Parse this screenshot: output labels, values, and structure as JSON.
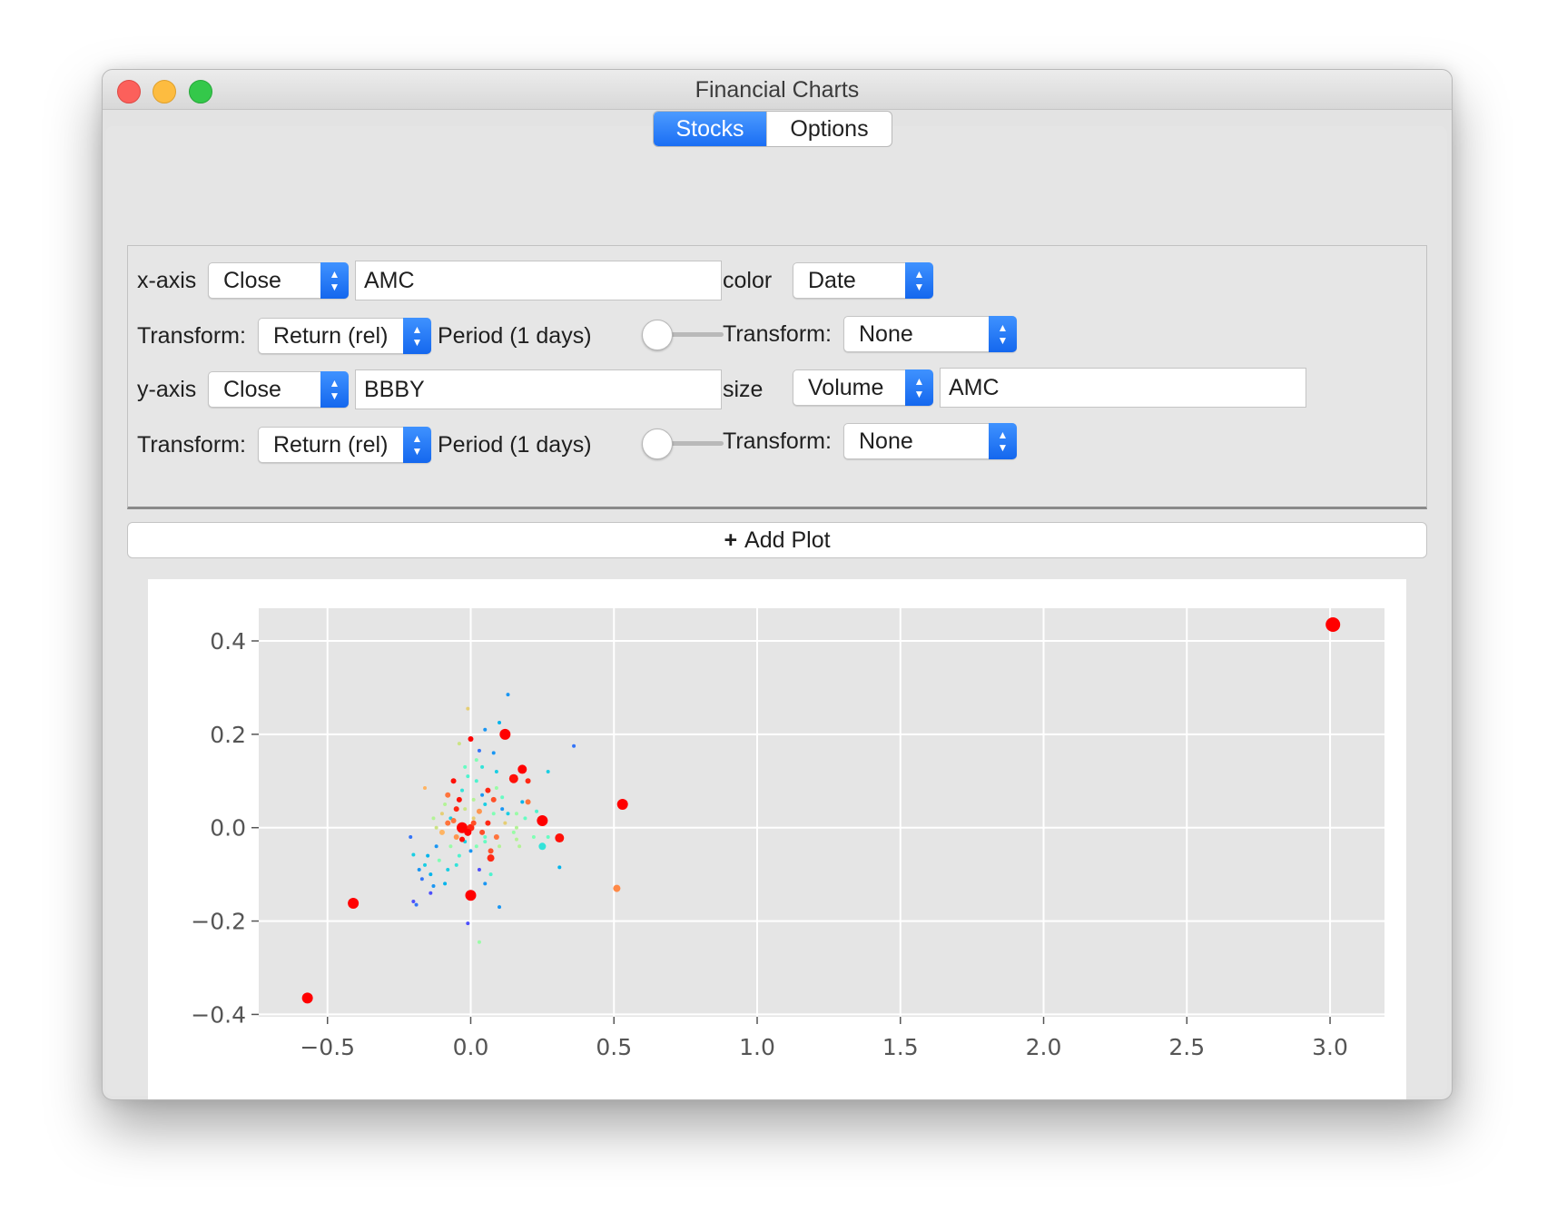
{
  "window": {
    "title": "Financial Charts"
  },
  "tabs": {
    "stocks": "Stocks",
    "options": "Options"
  },
  "controls": {
    "x_axis_label": "x-axis",
    "x_field": "Close",
    "x_symbol": "AMC",
    "x_transform_label": "Transform:",
    "x_transform": "Return (rel)",
    "x_period": "Period (1 days)",
    "color_label": "color",
    "color_field": "Date",
    "color_transform_label": "Transform:",
    "color_transform": "None",
    "y_axis_label": "y-axis",
    "y_field": "Close",
    "y_symbol": "BBBY",
    "y_transform_label": "Transform:",
    "y_transform": "Return (rel)",
    "y_period": "Period (1 days)",
    "size_label": "size",
    "size_field": "Volume",
    "size_symbol": "AMC",
    "size_transform_label": "Transform:",
    "size_transform": "None",
    "x_period_slider": 0,
    "y_period_slider": 0
  },
  "add_plot": {
    "label": "Add Plot"
  },
  "chart_data": {
    "type": "scatter",
    "xlim": [
      -0.74,
      3.19
    ],
    "ylim": [
      -0.405,
      0.47
    ],
    "xticks": [
      -0.5,
      0.0,
      0.5,
      1.0,
      1.5,
      2.0,
      2.5,
      3.0
    ],
    "yticks": [
      -0.4,
      -0.2,
      0.0,
      0.2,
      0.4
    ],
    "xtick_labels": [
      "−0.5",
      "0.0",
      "0.5",
      "1.0",
      "1.5",
      "2.0",
      "2.5",
      "3.0"
    ],
    "ytick_labels": [
      "−0.4",
      "−0.2",
      "0.0",
      "0.2",
      "0.4"
    ],
    "grid": true,
    "background": "#e5e5e5",
    "colormap": "rainbow",
    "points": [
      {
        "x": 3.01,
        "y": 0.435,
        "c": 1.0,
        "s": 8
      },
      {
        "x": -0.57,
        "y": -0.365,
        "c": 1.0,
        "s": 6
      },
      {
        "x": -0.41,
        "y": -0.162,
        "c": 1.0,
        "s": 6
      },
      {
        "x": 0.53,
        "y": 0.05,
        "c": 1.0,
        "s": 6
      },
      {
        "x": 0.12,
        "y": 0.2,
        "c": 1.0,
        "s": 6
      },
      {
        "x": 0.0,
        "y": -0.145,
        "c": 1.0,
        "s": 6
      },
      {
        "x": 0.25,
        "y": 0.015,
        "c": 1.0,
        "s": 6
      },
      {
        "x": 0.31,
        "y": -0.022,
        "c": 0.98,
        "s": 5
      },
      {
        "x": 0.18,
        "y": 0.125,
        "c": 1.0,
        "s": 5
      },
      {
        "x": 0.15,
        "y": 0.105,
        "c": 0.98,
        "s": 5
      },
      {
        "x": -0.03,
        "y": 0.0,
        "c": 1.0,
        "s": 6
      },
      {
        "x": 0.07,
        "y": -0.065,
        "c": 0.95,
        "s": 4
      },
      {
        "x": 0.51,
        "y": -0.13,
        "c": 0.82,
        "s": 4
      },
      {
        "x": 0.25,
        "y": -0.04,
        "c": 0.35,
        "s": 4
      },
      {
        "x": 0.13,
        "y": 0.285,
        "c": 0.2,
        "s": 2
      },
      {
        "x": 0.36,
        "y": 0.175,
        "c": 0.15,
        "s": 2
      },
      {
        "x": -0.01,
        "y": 0.255,
        "c": 0.7,
        "s": 2
      },
      {
        "x": 0.1,
        "y": 0.225,
        "c": 0.25,
        "s": 2
      },
      {
        "x": 0.05,
        "y": 0.21,
        "c": 0.2,
        "s": 2
      },
      {
        "x": 0.27,
        "y": 0.12,
        "c": 0.3,
        "s": 2
      },
      {
        "x": -0.16,
        "y": 0.085,
        "c": 0.75,
        "s": 2
      },
      {
        "x": 0.31,
        "y": -0.085,
        "c": 0.25,
        "s": 2
      },
      {
        "x": 0.1,
        "y": -0.17,
        "c": 0.2,
        "s": 2
      },
      {
        "x": -0.01,
        "y": -0.205,
        "c": 0.1,
        "s": 2
      },
      {
        "x": 0.03,
        "y": -0.245,
        "c": 0.55,
        "s": 2
      },
      {
        "x": -0.19,
        "y": -0.165,
        "c": 0.15,
        "s": 2
      },
      {
        "x": -0.2,
        "y": -0.158,
        "c": 0.1,
        "s": 2
      },
      {
        "x": -0.13,
        "y": -0.125,
        "c": 0.2,
        "s": 2
      },
      {
        "x": -0.21,
        "y": -0.02,
        "c": 0.15,
        "s": 2
      },
      {
        "x": -0.2,
        "y": -0.058,
        "c": 0.3,
        "s": 2
      },
      {
        "x": 0.2,
        "y": 0.055,
        "c": 0.85,
        "s": 3
      },
      {
        "x": 0.23,
        "y": 0.035,
        "c": 0.4,
        "s": 2
      },
      {
        "x": 0.16,
        "y": 0.03,
        "c": 0.55,
        "s": 2
      },
      {
        "x": 0.16,
        "y": 0.0,
        "c": 0.6,
        "s": 2
      },
      {
        "x": 0.16,
        "y": -0.025,
        "c": 0.6,
        "s": 2
      },
      {
        "x": 0.05,
        "y": -0.02,
        "c": 0.45,
        "s": 2
      },
      {
        "x": 0.08,
        "y": 0.03,
        "c": 0.5,
        "s": 2
      },
      {
        "x": 0.01,
        "y": 0.02,
        "c": 0.7,
        "s": 2
      },
      {
        "x": -0.05,
        "y": 0.04,
        "c": 0.95,
        "s": 3
      },
      {
        "x": -0.08,
        "y": 0.01,
        "c": 0.85,
        "s": 3
      },
      {
        "x": -0.02,
        "y": -0.03,
        "c": 0.3,
        "s": 2
      },
      {
        "x": 0.04,
        "y": 0.07,
        "c": 0.2,
        "s": 2
      },
      {
        "x": -0.01,
        "y": 0.11,
        "c": 0.4,
        "s": 2
      },
      {
        "x": 0.02,
        "y": 0.145,
        "c": 0.5,
        "s": 2
      },
      {
        "x": 0.03,
        "y": 0.165,
        "c": 0.15,
        "s": 2
      },
      {
        "x": 0.0,
        "y": 0.19,
        "c": 1.0,
        "s": 3
      },
      {
        "x": 0.11,
        "y": 0.065,
        "c": 0.45,
        "s": 2
      },
      {
        "x": 0.06,
        "y": 0.08,
        "c": 0.95,
        "s": 3
      },
      {
        "x": -0.04,
        "y": 0.06,
        "c": 0.98,
        "s": 3
      },
      {
        "x": -0.07,
        "y": 0.02,
        "c": 0.3,
        "s": 2
      },
      {
        "x": -0.1,
        "y": -0.01,
        "c": 0.75,
        "s": 3
      },
      {
        "x": -0.12,
        "y": -0.04,
        "c": 0.2,
        "s": 2
      },
      {
        "x": -0.15,
        "y": -0.06,
        "c": 0.25,
        "s": 2
      },
      {
        "x": -0.05,
        "y": -0.08,
        "c": 0.35,
        "s": 2
      },
      {
        "x": -0.08,
        "y": -0.09,
        "c": 0.3,
        "s": 2
      },
      {
        "x": 0.03,
        "y": -0.09,
        "c": 0.1,
        "s": 2
      },
      {
        "x": 0.07,
        "y": -0.1,
        "c": 0.4,
        "s": 2
      },
      {
        "x": -0.18,
        "y": -0.09,
        "c": 0.2,
        "s": 2
      },
      {
        "x": -0.14,
        "y": -0.1,
        "c": 0.25,
        "s": 2
      },
      {
        "x": 0.0,
        "y": -0.05,
        "c": 0.2,
        "s": 2
      },
      {
        "x": 0.04,
        "y": -0.01,
        "c": 0.9,
        "s": 3
      },
      {
        "x": 0.06,
        "y": 0.01,
        "c": 0.95,
        "s": 3
      },
      {
        "x": 0.09,
        "y": -0.02,
        "c": 0.85,
        "s": 3
      },
      {
        "x": 0.12,
        "y": 0.01,
        "c": 0.7,
        "s": 2
      },
      {
        "x": 0.1,
        "y": -0.04,
        "c": 0.6,
        "s": 2
      },
      {
        "x": -0.02,
        "y": 0.04,
        "c": 0.65,
        "s": 2
      },
      {
        "x": -0.03,
        "y": 0.08,
        "c": 0.35,
        "s": 2
      },
      {
        "x": 0.02,
        "y": 0.1,
        "c": 0.4,
        "s": 2
      },
      {
        "x": 0.05,
        "y": 0.05,
        "c": 0.3,
        "s": 2
      },
      {
        "x": 0.08,
        "y": 0.06,
        "c": 0.9,
        "s": 3
      },
      {
        "x": 0.0,
        "y": 0.0,
        "c": 0.95,
        "s": 4
      },
      {
        "x": -0.01,
        "y": -0.01,
        "c": 1.0,
        "s": 4
      },
      {
        "x": 0.01,
        "y": 0.01,
        "c": 0.9,
        "s": 3
      },
      {
        "x": -0.05,
        "y": -0.02,
        "c": 0.8,
        "s": 3
      },
      {
        "x": -0.1,
        "y": 0.03,
        "c": 0.7,
        "s": 2
      },
      {
        "x": -0.12,
        "y": 0.0,
        "c": 0.65,
        "s": 2
      },
      {
        "x": -0.09,
        "y": 0.05,
        "c": 0.6,
        "s": 2
      },
      {
        "x": -0.07,
        "y": -0.04,
        "c": 0.55,
        "s": 2
      },
      {
        "x": -0.04,
        "y": -0.06,
        "c": 0.4,
        "s": 2
      },
      {
        "x": 0.02,
        "y": -0.04,
        "c": 0.5,
        "s": 2
      },
      {
        "x": 0.05,
        "y": -0.03,
        "c": 0.45,
        "s": 2
      },
      {
        "x": 0.13,
        "y": 0.03,
        "c": 0.3,
        "s": 2
      },
      {
        "x": 0.15,
        "y": -0.01,
        "c": 0.55,
        "s": 2
      },
      {
        "x": 0.19,
        "y": 0.02,
        "c": 0.45,
        "s": 2
      },
      {
        "x": 0.22,
        "y": -0.02,
        "c": 0.5,
        "s": 2
      },
      {
        "x": 0.2,
        "y": 0.1,
        "c": 0.95,
        "s": 3
      },
      {
        "x": 0.09,
        "y": 0.12,
        "c": 0.3,
        "s": 2
      },
      {
        "x": 0.04,
        "y": 0.13,
        "c": 0.35,
        "s": 2
      },
      {
        "x": -0.02,
        "y": 0.13,
        "c": 0.45,
        "s": 2
      },
      {
        "x": -0.06,
        "y": 0.1,
        "c": 0.98,
        "s": 3
      },
      {
        "x": -0.11,
        "y": -0.07,
        "c": 0.5,
        "s": 2
      },
      {
        "x": -0.16,
        "y": -0.08,
        "c": 0.3,
        "s": 2
      },
      {
        "x": -0.17,
        "y": -0.11,
        "c": 0.15,
        "s": 2
      },
      {
        "x": -0.09,
        "y": -0.12,
        "c": 0.25,
        "s": 2
      },
      {
        "x": 0.05,
        "y": -0.12,
        "c": 0.2,
        "s": 2
      },
      {
        "x": -0.14,
        "y": -0.14,
        "c": 0.1,
        "s": 2
      },
      {
        "x": -0.06,
        "y": 0.015,
        "c": 0.85,
        "s": 3
      },
      {
        "x": 0.03,
        "y": 0.035,
        "c": 0.8,
        "s": 3
      },
      {
        "x": 0.07,
        "y": -0.05,
        "c": 0.9,
        "s": 3
      },
      {
        "x": -0.03,
        "y": -0.025,
        "c": 0.98,
        "s": 3
      },
      {
        "x": 0.01,
        "y": 0.06,
        "c": 0.6,
        "s": 2
      },
      {
        "x": -0.13,
        "y": 0.02,
        "c": 0.6,
        "s": 2
      },
      {
        "x": 0.11,
        "y": 0.04,
        "c": 0.2,
        "s": 2
      },
      {
        "x": 0.18,
        "y": 0.055,
        "c": 0.25,
        "s": 2
      },
      {
        "x": 0.17,
        "y": -0.04,
        "c": 0.6,
        "s": 2
      },
      {
        "x": 0.09,
        "y": 0.085,
        "c": 0.55,
        "s": 2
      },
      {
        "x": -0.08,
        "y": 0.07,
        "c": 0.85,
        "s": 3
      },
      {
        "x": 0.27,
        "y": -0.02,
        "c": 0.45,
        "s": 2
      },
      {
        "x": 0.08,
        "y": 0.16,
        "c": 0.2,
        "s": 2
      },
      {
        "x": -0.04,
        "y": 0.18,
        "c": 0.65,
        "s": 2
      }
    ]
  }
}
